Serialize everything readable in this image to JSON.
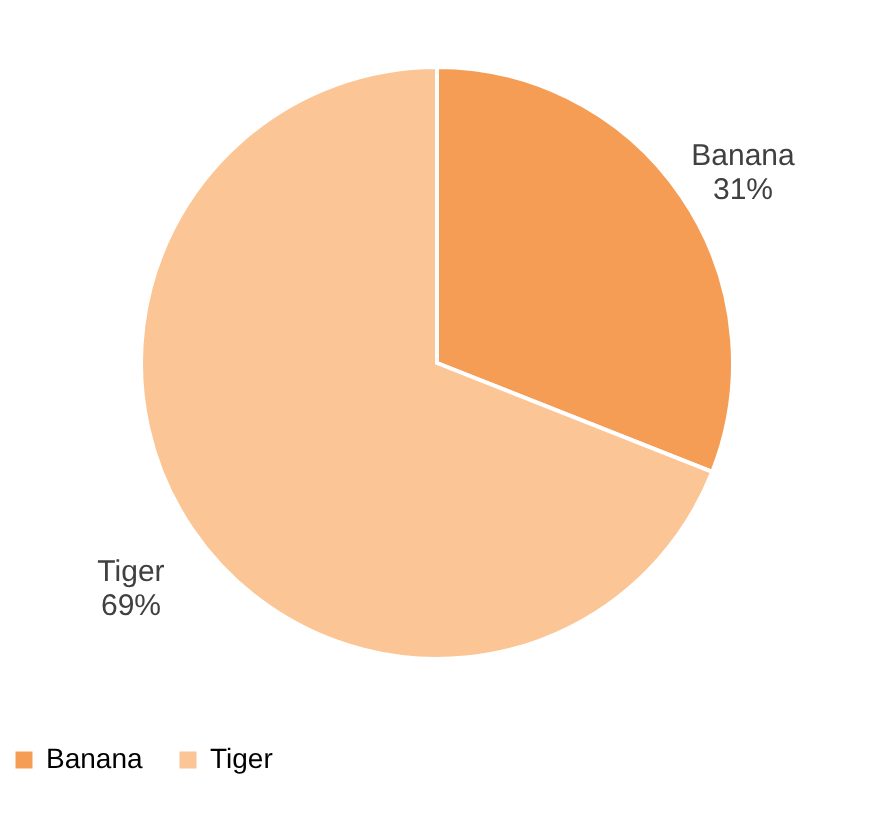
{
  "chart_data": {
    "type": "pie",
    "categories": [
      "Banana",
      "Tiger"
    ],
    "values": [
      31,
      69
    ],
    "value_labels": [
      "31%",
      "69%"
    ],
    "colors": [
      "#f59c55",
      "#fbc596"
    ],
    "legend": "bottom"
  }
}
